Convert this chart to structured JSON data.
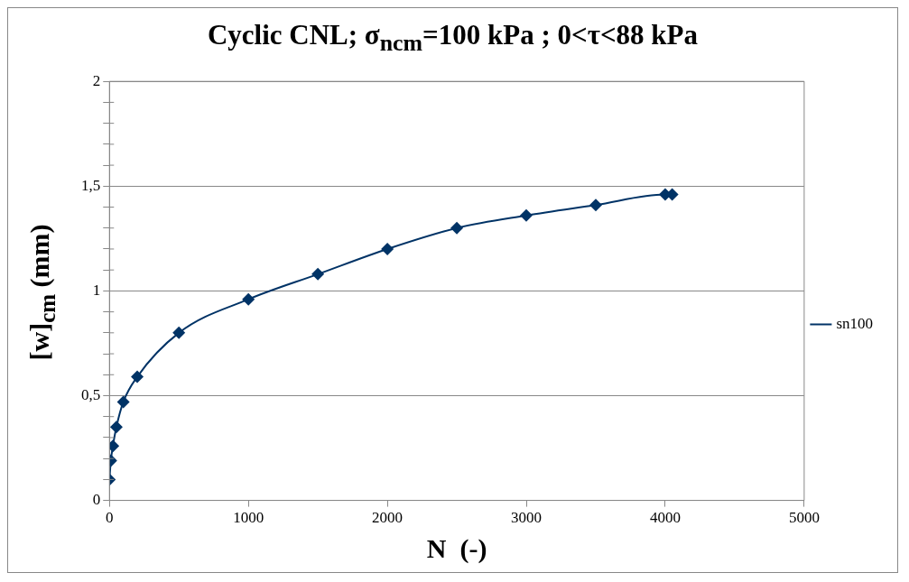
{
  "chart_data": {
    "type": "line",
    "title": "Cyclic CNL; σ$_{ncm}$=100 kPa ; 0<τ<88 kPa",
    "xlabel": "N  (-)",
    "ylabel": "[w]$_{cm}$  (mm)",
    "x": [
      0,
      10,
      25,
      50,
      100,
      200,
      500,
      1000,
      1500,
      2000,
      2500,
      3000,
      3500,
      4000,
      4050
    ],
    "series": [
      {
        "name": "sn100",
        "color": "#003366",
        "values": [
          0.1,
          0.19,
          0.26,
          0.35,
          0.47,
          0.59,
          0.8,
          0.96,
          1.08,
          1.2,
          1.3,
          1.36,
          1.41,
          1.46,
          1.46
        ]
      }
    ],
    "xlim": [
      0,
      5000
    ],
    "xticks": [
      0,
      1000,
      2000,
      3000,
      4000,
      5000
    ],
    "ylim": [
      0,
      2
    ],
    "yticks": [
      0,
      {
        "value": 0.1,
        "label": null
      },
      {
        "value": 0.2,
        "label": null
      },
      {
        "value": 0.3,
        "label": null
      },
      {
        "value": 0.4,
        "label": null
      },
      {
        "value": 0.5,
        "label": "0,5"
      },
      {
        "value": 0.6,
        "label": null
      },
      {
        "value": 0.7,
        "label": null
      },
      {
        "value": 0.8,
        "label": null
      },
      {
        "value": 0.9,
        "label": null
      },
      1,
      {
        "value": 1.1,
        "label": null
      },
      {
        "value": 1.2,
        "label": null
      },
      {
        "value": 1.3,
        "label": null
      },
      {
        "value": 1.4,
        "label": null
      },
      {
        "value": 1.5,
        "label": "1,5"
      },
      {
        "value": 1.6,
        "label": null
      },
      {
        "value": 1.7,
        "label": null
      },
      {
        "value": 1.8,
        "label": null
      },
      {
        "value": 1.9,
        "label": null
      },
      2
    ],
    "grid": "y",
    "legend": "right",
    "marker": "diamond",
    "line_style": "solid"
  }
}
